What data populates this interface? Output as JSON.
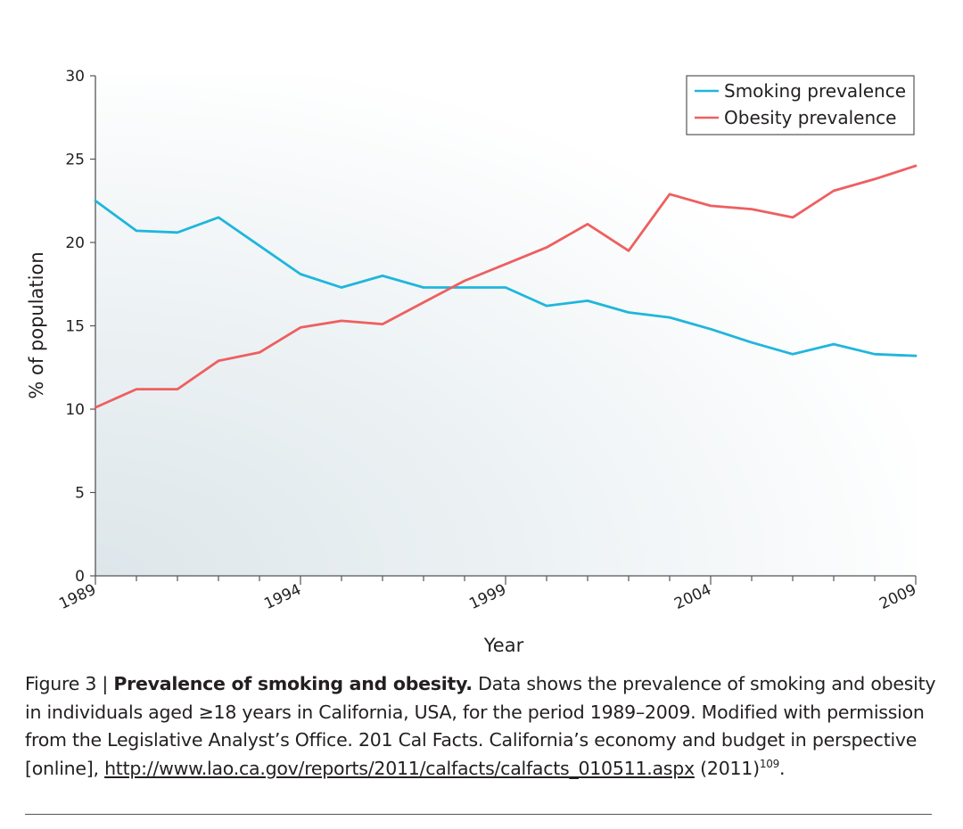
{
  "chart_data": {
    "type": "line",
    "xlabel": "Year",
    "ylabel": "% of population",
    "xlim": [
      1989,
      2009
    ],
    "ylim": [
      0,
      30
    ],
    "x_ticks_major": [
      1989,
      1994,
      1999,
      2004,
      2009
    ],
    "y_ticks": [
      0,
      5,
      10,
      15,
      20,
      25,
      30
    ],
    "grid": false,
    "legend_position": "top-right",
    "series": [
      {
        "name": "Smoking prevalence",
        "color": "#1fb6dc",
        "x": [
          1989,
          1990,
          1991,
          1992,
          1993,
          1994,
          1995,
          1996,
          1997,
          1998,
          1999,
          2000,
          2001,
          2002,
          2003,
          2004,
          2005,
          2006,
          2007,
          2008,
          2009
        ],
        "values": [
          22.5,
          20.7,
          20.6,
          21.5,
          19.8,
          18.1,
          17.3,
          18.0,
          17.3,
          17.3,
          17.3,
          16.2,
          16.5,
          15.8,
          15.5,
          14.8,
          14.0,
          13.3,
          13.9,
          13.3,
          13.2
        ]
      },
      {
        "name": "Obesity prevalence",
        "color": "#ee5f60",
        "x": [
          1989,
          1990,
          1991,
          1992,
          1993,
          1994,
          1995,
          1996,
          1997,
          1998,
          1999,
          2000,
          2001,
          2002,
          2003,
          2004,
          2005,
          2006,
          2007,
          2008,
          2009
        ],
        "values": [
          10.1,
          11.2,
          11.2,
          12.9,
          13.4,
          14.9,
          15.3,
          15.1,
          16.4,
          17.7,
          18.7,
          19.7,
          21.1,
          19.5,
          22.9,
          22.2,
          22.0,
          21.5,
          23.1,
          23.8,
          24.6
        ]
      }
    ]
  },
  "caption": {
    "figure_label": "Figure 3 | ",
    "bold_title": "Prevalence of smoking and obesity.",
    "text": " Data shows the prevalence of smoking and obesity in individuals aged ≥18 years in California, USA, for the period 1989–2009. Modified with permission from the Legislative Analyst’s Office. 201 Cal Facts. California’s economy and budget in perspective [online], ",
    "link": "http://www.lao.ca.gov/reports/2011/calfacts/calfacts_010511.aspx",
    "after_link": " (2011)",
    "reference": "109",
    "end": "."
  }
}
